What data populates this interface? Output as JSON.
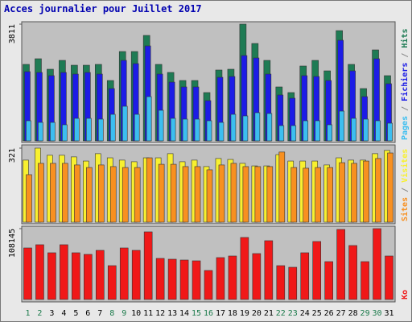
{
  "title": "Acces journalier pour Juillet 2017",
  "legend_separator": " / ",
  "chart_data": [
    {
      "type": "bar",
      "ylim": [
        0,
        3811
      ],
      "yticks": [
        3811
      ],
      "series": [
        {
          "name": "Hits",
          "color": "#1e7b54",
          "values": [
            2497,
            2681,
            2339,
            2628,
            2470,
            2470,
            2497,
            1971,
            2917,
            2917,
            3443,
            2497,
            2234,
            1971,
            1971,
            1577,
            2313,
            2339,
            3811,
            3180,
            2628,
            1761,
            1577,
            2444,
            2628,
            2286,
            3600,
            2497,
            1708,
            2970,
            2129
          ]
        },
        {
          "name": "Fichiers",
          "color": "#1c1ce6",
          "values": [
            2260,
            2234,
            2129,
            2234,
            2181,
            2234,
            2181,
            1708,
            2628,
            2523,
            3101,
            2181,
            1918,
            1761,
            1761,
            1314,
            2076,
            2102,
            2786,
            2707,
            2181,
            1498,
            1393,
            2129,
            2102,
            1971,
            3285,
            2286,
            1445,
            2681,
            1866
          ]
        },
        {
          "name": "Pages",
          "color": "#3cbef0",
          "values": [
            657,
            604,
            604,
            526,
            736,
            736,
            710,
            867,
            1130,
            867,
            1445,
            999,
            736,
            710,
            710,
            657,
            604,
            867,
            815,
            920,
            894,
            499,
            499,
            657,
            657,
            526,
            972,
            736,
            710,
            657,
            578
          ]
        }
      ]
    },
    {
      "type": "bar",
      "ylim": [
        0,
        321
      ],
      "yticks": [
        321
      ],
      "series": [
        {
          "name": "Visites",
          "color": "#f8f030",
          "values": [
            269,
            321,
            290,
            290,
            283,
            265,
            297,
            279,
            269,
            262,
            279,
            279,
            297,
            262,
            269,
            241,
            276,
            272,
            255,
            244,
            244,
            293,
            265,
            265,
            265,
            248,
            279,
            269,
            269,
            297,
            311
          ]
        },
        {
          "name": "Sites",
          "color": "#f89020",
          "values": [
            206,
            255,
            255,
            255,
            248,
            237,
            248,
            241,
            237,
            237,
            279,
            251,
            251,
            241,
            241,
            227,
            248,
            255,
            241,
            241,
            241,
            304,
            237,
            234,
            237,
            237,
            258,
            255,
            265,
            276,
            300
          ]
        }
      ]
    },
    {
      "type": "bar",
      "ylim": [
        0,
        108145
      ],
      "yticks": [
        108145
      ],
      "categories": [
        "1",
        "2",
        "3",
        "4",
        "5",
        "6",
        "7",
        "8",
        "9",
        "10",
        "11",
        "12",
        "13",
        "14",
        "15",
        "16",
        "17",
        "18",
        "19",
        "20",
        "21",
        "22",
        "23",
        "24",
        "25",
        "26",
        "27",
        "28",
        "29",
        "30",
        "31"
      ],
      "category_colors": [
        "#1a7a4a",
        "#1a7a4a",
        "#000000",
        "#000000",
        "#000000",
        "#000000",
        "#000000",
        "#1a7a4a",
        "#1a7a4a",
        "#000000",
        "#000000",
        "#000000",
        "#000000",
        "#000000",
        "#1a7a4a",
        "#1a7a4a",
        "#000000",
        "#000000",
        "#000000",
        "#000000",
        "#000000",
        "#1a7a4a",
        "#1a7a4a",
        "#000000",
        "#000000",
        "#000000",
        "#000000",
        "#000000",
        "#1a7a4a",
        "#1a7a4a",
        "#000000"
      ],
      "series": [
        {
          "name": "Ko",
          "color": "#f01818",
          "values": [
            78656,
            83572,
            71282,
            83572,
            71282,
            68824,
            74969,
            51618,
            78656,
            74969,
            103236,
            62679,
            61450,
            60221,
            58992,
            44244,
            63908,
            66366,
            94633,
            70053,
            89717,
            51618,
            49160,
            71282,
            88488,
            57763,
            106923,
            82343,
            57763,
            108145,
            66366
          ]
        }
      ]
    }
  ]
}
